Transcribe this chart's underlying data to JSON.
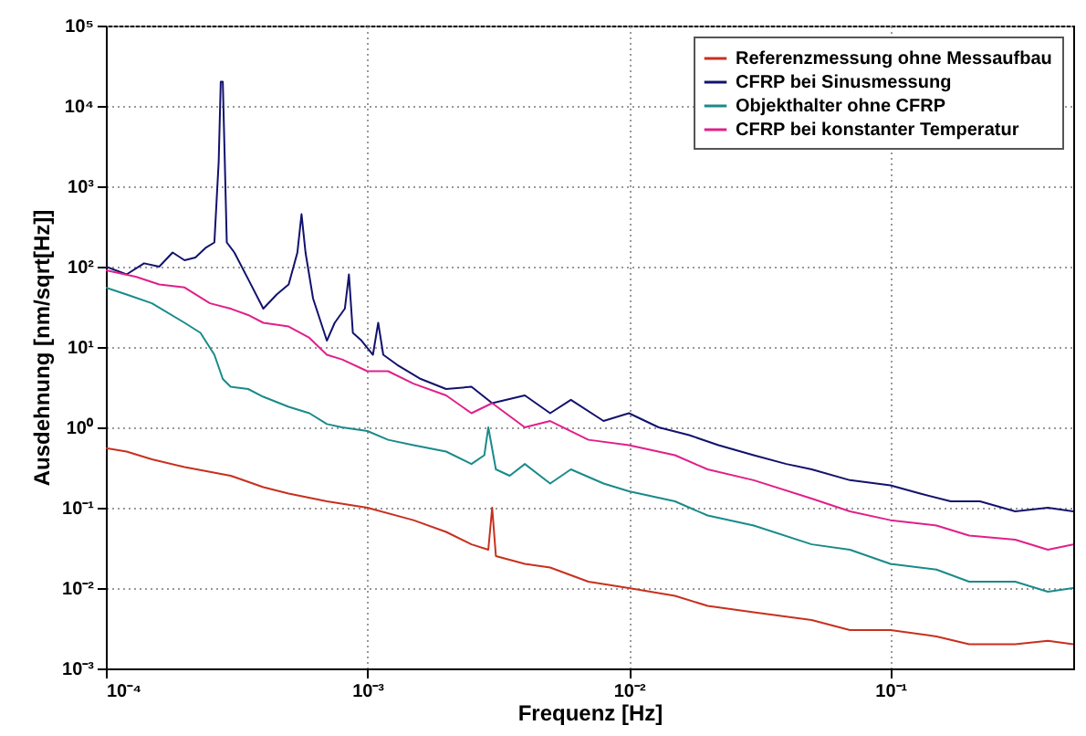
{
  "chart_data": {
    "type": "line",
    "xlabel": "Frequenz [Hz]",
    "ylabel": "Ausdehnung [nm/sqrt[Hz]]",
    "log": "xy",
    "grid": true,
    "legend": "top right",
    "xlim": [
      0.0001,
      0.5
    ],
    "ylim": [
      0.001,
      100000
    ],
    "xticks": [
      {
        "value": 0.0001,
        "label": "10⁻⁴"
      },
      {
        "value": 0.001,
        "label": "10⁻³"
      },
      {
        "value": 0.01,
        "label": "10⁻²"
      },
      {
        "value": 0.1,
        "label": "10⁻¹"
      }
    ],
    "yticks": [
      {
        "value": 0.001,
        "label": "10⁻³"
      },
      {
        "value": 0.01,
        "label": "10⁻²"
      },
      {
        "value": 0.1,
        "label": "10⁻¹"
      },
      {
        "value": 1,
        "label": "10⁰"
      },
      {
        "value": 10,
        "label": "10¹"
      },
      {
        "value": 100,
        "label": "10²"
      },
      {
        "value": 1000,
        "label": "10³"
      },
      {
        "value": 10000,
        "label": "10⁴"
      },
      {
        "value": 100000,
        "label": "10⁵"
      }
    ],
    "series": [
      {
        "name": "Referenzmessung ohne Messaufbau",
        "color": "#c8301e",
        "x": [
          0.0001,
          0.00012,
          0.00015,
          0.0002,
          0.0003,
          0.0004,
          0.0005,
          0.0007,
          0.001,
          0.0015,
          0.002,
          0.0025,
          0.0029,
          0.003,
          0.0031,
          0.004,
          0.005,
          0.007,
          0.01,
          0.015,
          0.02,
          0.03,
          0.05,
          0.07,
          0.1,
          0.15,
          0.2,
          0.3,
          0.4,
          0.5
        ],
        "values": [
          0.55,
          0.5,
          0.4,
          0.32,
          0.25,
          0.18,
          0.15,
          0.12,
          0.1,
          0.07,
          0.05,
          0.035,
          0.03,
          0.1,
          0.025,
          0.02,
          0.018,
          0.012,
          0.01,
          0.008,
          0.006,
          0.005,
          0.004,
          0.003,
          0.003,
          0.0025,
          0.002,
          0.002,
          0.0022,
          0.002
        ]
      },
      {
        "name": "CFRP bei Sinusmessung",
        "color": "#12126e",
        "x": [
          0.0001,
          0.00012,
          0.00014,
          0.00016,
          0.00018,
          0.0002,
          0.00022,
          0.00024,
          0.00026,
          0.00027,
          0.000275,
          0.00028,
          0.000285,
          0.00029,
          0.00031,
          0.00035,
          0.0004,
          0.00045,
          0.0005,
          0.00054,
          0.00056,
          0.00058,
          0.00062,
          0.0007,
          0.00075,
          0.00082,
          0.00085,
          0.00088,
          0.00095,
          0.00105,
          0.0011,
          0.00115,
          0.0013,
          0.0016,
          0.002,
          0.0025,
          0.003,
          0.004,
          0.005,
          0.006,
          0.008,
          0.01,
          0.013,
          0.017,
          0.022,
          0.03,
          0.04,
          0.05,
          0.07,
          0.1,
          0.13,
          0.17,
          0.22,
          0.3,
          0.4,
          0.5
        ],
        "values": [
          100,
          80,
          110,
          100,
          150,
          120,
          130,
          170,
          200,
          2000,
          20000,
          20000,
          2000,
          200,
          150,
          70,
          30,
          45,
          60,
          150,
          450,
          150,
          40,
          12,
          20,
          30,
          80,
          15,
          12,
          8,
          20,
          8,
          6,
          4,
          3,
          3.2,
          2,
          2.5,
          1.5,
          2.2,
          1.2,
          1.5,
          1,
          0.8,
          0.6,
          0.45,
          0.35,
          0.3,
          0.22,
          0.19,
          0.15,
          0.12,
          0.12,
          0.09,
          0.1,
          0.09
        ]
      },
      {
        "name": "Objekthalter ohne CFRP",
        "color": "#1a8a8a",
        "x": [
          0.0001,
          0.00012,
          0.00015,
          0.0002,
          0.00023,
          0.00026,
          0.00028,
          0.0003,
          0.00035,
          0.0004,
          0.0005,
          0.0006,
          0.0007,
          0.0008,
          0.001,
          0.0012,
          0.0015,
          0.002,
          0.0025,
          0.0028,
          0.0029,
          0.0031,
          0.0035,
          0.004,
          0.005,
          0.006,
          0.008,
          0.01,
          0.015,
          0.02,
          0.03,
          0.05,
          0.07,
          0.1,
          0.15,
          0.2,
          0.3,
          0.4,
          0.5
        ],
        "values": [
          55,
          45,
          35,
          20,
          15,
          8,
          4,
          3.2,
          3,
          2.4,
          1.8,
          1.5,
          1.1,
          1,
          0.9,
          0.7,
          0.6,
          0.5,
          0.35,
          0.45,
          1,
          0.3,
          0.25,
          0.35,
          0.2,
          0.3,
          0.2,
          0.16,
          0.12,
          0.08,
          0.06,
          0.035,
          0.03,
          0.02,
          0.017,
          0.012,
          0.012,
          0.009,
          0.01
        ]
      },
      {
        "name": "CFRP bei konstanter Temperatur",
        "color": "#e0208a",
        "x": [
          0.0001,
          0.00013,
          0.00016,
          0.0002,
          0.00025,
          0.0003,
          0.00035,
          0.0004,
          0.0005,
          0.0006,
          0.0007,
          0.0008,
          0.001,
          0.0012,
          0.0015,
          0.002,
          0.0025,
          0.003,
          0.004,
          0.005,
          0.007,
          0.01,
          0.015,
          0.02,
          0.03,
          0.05,
          0.07,
          0.1,
          0.15,
          0.2,
          0.3,
          0.4,
          0.5
        ],
        "values": [
          90,
          75,
          60,
          55,
          35,
          30,
          25,
          20,
          18,
          13,
          8,
          7,
          5,
          5,
          3.5,
          2.5,
          1.5,
          2,
          1,
          1.2,
          0.7,
          0.6,
          0.45,
          0.3,
          0.22,
          0.13,
          0.09,
          0.07,
          0.06,
          0.045,
          0.04,
          0.03,
          0.035
        ]
      }
    ]
  }
}
